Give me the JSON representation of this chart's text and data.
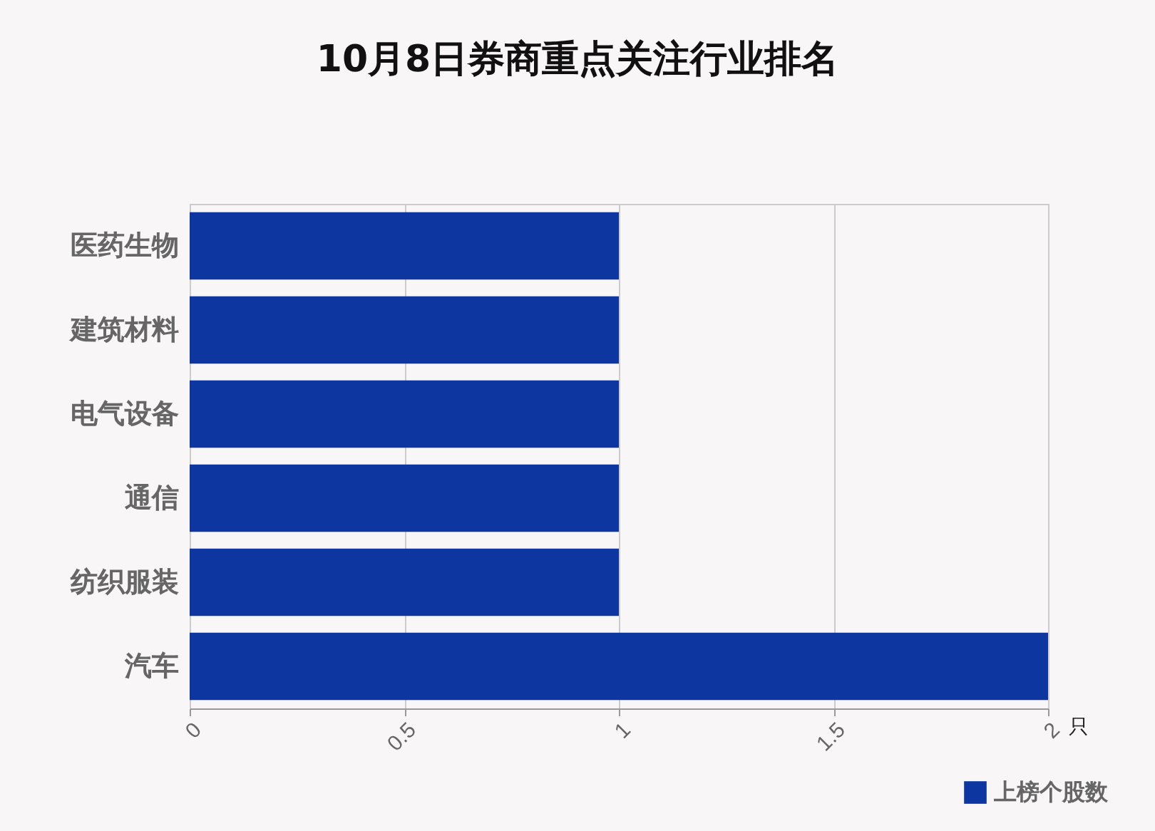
{
  "chart_data": {
    "type": "bar",
    "orientation": "horizontal",
    "title": "10月8日券商重点关注行业排名",
    "xlabel": "只",
    "categories": [
      "医药生物",
      "建筑材料",
      "电气设备",
      "通信",
      "纺织服装",
      "汽车"
    ],
    "series": [
      {
        "name": "上榜个股数",
        "color": "#0d36a0",
        "values": [
          1,
          1,
          1,
          1,
          1,
          2
        ]
      }
    ],
    "xlim": [
      0,
      2
    ],
    "xticks": [
      0,
      0.5,
      1,
      1.5,
      2
    ],
    "grid": "x",
    "legend": "bottom right"
  }
}
